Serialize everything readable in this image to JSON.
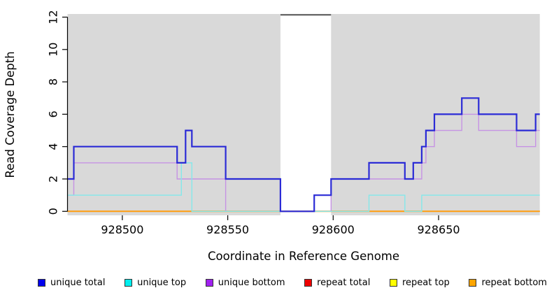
{
  "figure": {
    "background_color": "#ffffff",
    "plot_background_color": "#d9d9d9",
    "mask_band_color": "#ffffff",
    "mask_top_border_color": "#6a6a6a"
  },
  "axes": {
    "y": {
      "label": "Read Coverage Depth",
      "ticks": [
        0,
        2,
        4,
        6,
        8,
        10,
        12
      ],
      "range": [
        0,
        12
      ]
    },
    "x": {
      "label": "Coordinate in Reference Genome",
      "ticks": [
        928500,
        928550,
        928600,
        928650
      ],
      "range": [
        928474,
        928698
      ]
    }
  },
  "legend": {
    "items": [
      {
        "label": "unique total",
        "color": "#0000ee"
      },
      {
        "label": "unique top",
        "color": "#00eeee"
      },
      {
        "label": "unique bottom",
        "color": "#a020f0"
      },
      {
        "label": "repeat total",
        "color": "#ee0000"
      },
      {
        "label": "repeat top",
        "color": "#ffff00"
      },
      {
        "label": "repeat bottom",
        "color": "#ffa500"
      }
    ]
  },
  "chart_data": {
    "type": "line",
    "subtype": "step-coverage-plot",
    "title": "",
    "xlabel": "Coordinate in Reference Genome",
    "ylabel": "Read Coverage Depth",
    "xlim": [
      928474,
      928698
    ],
    "ylim": [
      0,
      12
    ],
    "grid": false,
    "legend_position": "bottom",
    "mask_region": {
      "x_start": 928575,
      "x_end": 928599
    },
    "series": [
      {
        "name": "unique total",
        "line_color": "#2b2bd6",
        "width": 2.2,
        "steps": [
          [
            928474,
            2
          ],
          [
            928477,
            4
          ],
          [
            928526,
            3
          ],
          [
            928530,
            5
          ],
          [
            928533,
            4
          ],
          [
            928549,
            2
          ],
          [
            928575,
            0
          ],
          [
            928591,
            1
          ],
          [
            928599,
            2
          ],
          [
            928617,
            3
          ],
          [
            928634,
            2
          ],
          [
            928638,
            3
          ],
          [
            928642,
            4
          ],
          [
            928644,
            5
          ],
          [
            928648,
            6
          ],
          [
            928661,
            7
          ],
          [
            928669,
            6
          ],
          [
            928687,
            5
          ],
          [
            928696,
            6
          ],
          [
            928698,
            6
          ]
        ]
      },
      {
        "name": "unique top",
        "line_color": "#84e8ea",
        "width": 1.4,
        "steps": [
          [
            928474,
            1
          ],
          [
            928528,
            3
          ],
          [
            928533,
            0
          ],
          [
            928617,
            1
          ],
          [
            928634,
            0
          ],
          [
            928642,
            1
          ],
          [
            928698,
            1
          ]
        ]
      },
      {
        "name": "unique bottom",
        "line_color": "#c693e4",
        "width": 1.4,
        "steps": [
          [
            928474,
            1
          ],
          [
            928477,
            3
          ],
          [
            928526,
            2
          ],
          [
            928549,
            0
          ],
          [
            928599,
            2
          ],
          [
            928642,
            3
          ],
          [
            928644,
            4
          ],
          [
            928648,
            5
          ],
          [
            928661,
            6
          ],
          [
            928669,
            5
          ],
          [
            928687,
            4
          ],
          [
            928696,
            5
          ],
          [
            928698,
            5
          ]
        ]
      },
      {
        "name": "repeat total",
        "line_color": "#dd0000",
        "width": 1.3,
        "steps": [
          [
            928474,
            0
          ],
          [
            928698,
            0
          ]
        ]
      },
      {
        "name": "repeat top",
        "line_color": "#f2e700",
        "width": 1.3,
        "steps": [
          [
            928474,
            0
          ],
          [
            928698,
            0
          ]
        ]
      },
      {
        "name": "repeat bottom",
        "line_color": "#ff9d0f",
        "width": 2.0,
        "steps": [
          [
            928474,
            0
          ],
          [
            928698,
            0
          ]
        ]
      }
    ],
    "draw_order": [
      "repeat total",
      "repeat top",
      "repeat bottom",
      "unique bottom",
      "unique top",
      "unique total"
    ]
  }
}
